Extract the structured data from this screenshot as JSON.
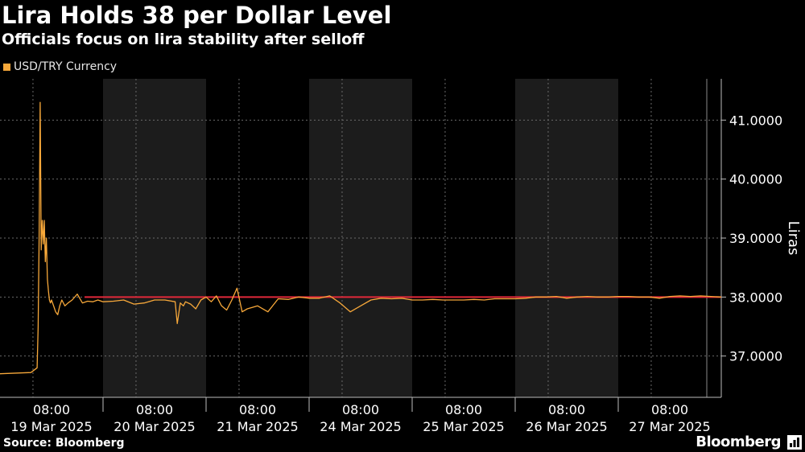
{
  "header": {
    "title": "Lira Holds 38 per Dollar Level",
    "subtitle": "Officials focus on lira stability after selloff"
  },
  "footer": {
    "source": "Source: Bloomberg",
    "brand": "Bloomberg"
  },
  "colors": {
    "series": "#f7a83a",
    "reference_line": "#e0283a",
    "shade": "#1c1c1c",
    "grid": "#6a6a6a"
  },
  "chart_data": {
    "type": "line",
    "title": "Lira Holds 38 per Dollar Level",
    "subtitle": "Officials focus on lira stability after selloff",
    "ylabel": "Liras",
    "ylim": [
      36.3,
      41.7
    ],
    "yticks": [
      37,
      38,
      39,
      40,
      41
    ],
    "ytick_labels": [
      "37.0000",
      "38.0000",
      "39.0000",
      "40.0000",
      "41.0000"
    ],
    "legend": {
      "position": "top-left",
      "entries": [
        "USD/TRY Currency"
      ]
    },
    "reference_line": {
      "value": 38.0
    },
    "xticks": [
      {
        "time": "08:00",
        "date": "19 Mar 2025"
      },
      {
        "time": "08:00",
        "date": "20 Mar 2025"
      },
      {
        "time": "08:00",
        "date": "21 Mar 2025"
      },
      {
        "time": "08:00",
        "date": "24 Mar 2025"
      },
      {
        "time": "08:00",
        "date": "25 Mar 2025"
      },
      {
        "time": "08:00",
        "date": "26 Mar 2025"
      },
      {
        "time": "08:00",
        "date": "27 Mar 2025"
      }
    ],
    "session_days": [
      "19 Mar 2025",
      "20 Mar 2025",
      "21 Mar 2025",
      "24 Mar 2025",
      "25 Mar 2025",
      "26 Mar 2025",
      "27 Mar 2025"
    ],
    "shaded_days": [
      "20 Mar 2025",
      "24 Mar 2025",
      "26 Mar 2025"
    ],
    "series": [
      {
        "name": "USD/TRY Currency",
        "x": [
          0,
          0.3,
          0.36,
          0.37,
          0.38,
          0.39,
          0.4,
          0.41,
          0.42,
          0.43,
          0.44,
          0.45,
          0.46,
          0.47,
          0.48,
          0.49,
          0.5,
          0.52,
          0.54,
          0.56,
          0.58,
          0.6,
          0.63,
          0.66,
          0.7,
          0.75,
          0.8,
          0.85,
          0.9,
          0.95,
          1.0,
          1.1,
          1.2,
          1.3,
          1.4,
          1.5,
          1.6,
          1.7,
          1.72,
          1.75,
          1.78,
          1.8,
          1.85,
          1.9,
          1.95,
          2.0,
          2.05,
          2.1,
          2.15,
          2.2,
          2.25,
          2.3,
          2.35,
          2.4,
          2.5,
          2.6,
          2.7,
          2.8,
          2.9,
          3.0,
          3.1,
          3.2,
          3.3,
          3.4,
          3.5,
          3.6,
          3.7,
          3.8,
          3.9,
          4.0,
          4.1,
          4.2,
          4.3,
          4.4,
          4.5,
          4.6,
          4.7,
          4.8,
          4.9,
          5.0,
          5.1,
          5.2,
          5.3,
          5.4,
          5.5,
          5.6,
          5.7,
          5.8,
          5.9,
          6.0,
          6.1,
          6.2,
          6.3,
          6.4,
          6.5,
          6.6,
          6.7,
          6.8,
          6.9,
          7.0
        ],
        "values": [
          36.7,
          36.72,
          36.8,
          37.5,
          39.0,
          41.3,
          38.8,
          39.3,
          38.9,
          39.3,
          38.6,
          39.0,
          38.3,
          38.1,
          37.95,
          37.9,
          37.95,
          37.85,
          37.75,
          37.7,
          37.85,
          37.95,
          37.85,
          37.9,
          37.95,
          38.05,
          37.9,
          37.93,
          37.92,
          37.95,
          37.92,
          37.93,
          37.95,
          37.88,
          37.9,
          37.95,
          37.95,
          37.92,
          37.55,
          37.9,
          37.85,
          37.92,
          37.88,
          37.8,
          37.95,
          38.0,
          37.92,
          38.02,
          37.85,
          37.78,
          37.95,
          38.15,
          37.75,
          37.8,
          37.85,
          37.75,
          37.97,
          37.96,
          38.0,
          37.98,
          37.98,
          38.02,
          37.9,
          37.75,
          37.85,
          37.95,
          37.98,
          37.97,
          37.98,
          37.95,
          37.95,
          37.96,
          37.95,
          37.95,
          37.95,
          37.96,
          37.95,
          37.97,
          37.97,
          37.97,
          37.98,
          38.0,
          38.0,
          38.01,
          37.98,
          38.0,
          38.01,
          38.0,
          38.0,
          38.01,
          38.01,
          38.0,
          38.0,
          37.98,
          38.01,
          38.02,
          38.01,
          38.02,
          38.01,
          38.0
        ]
      }
    ]
  }
}
